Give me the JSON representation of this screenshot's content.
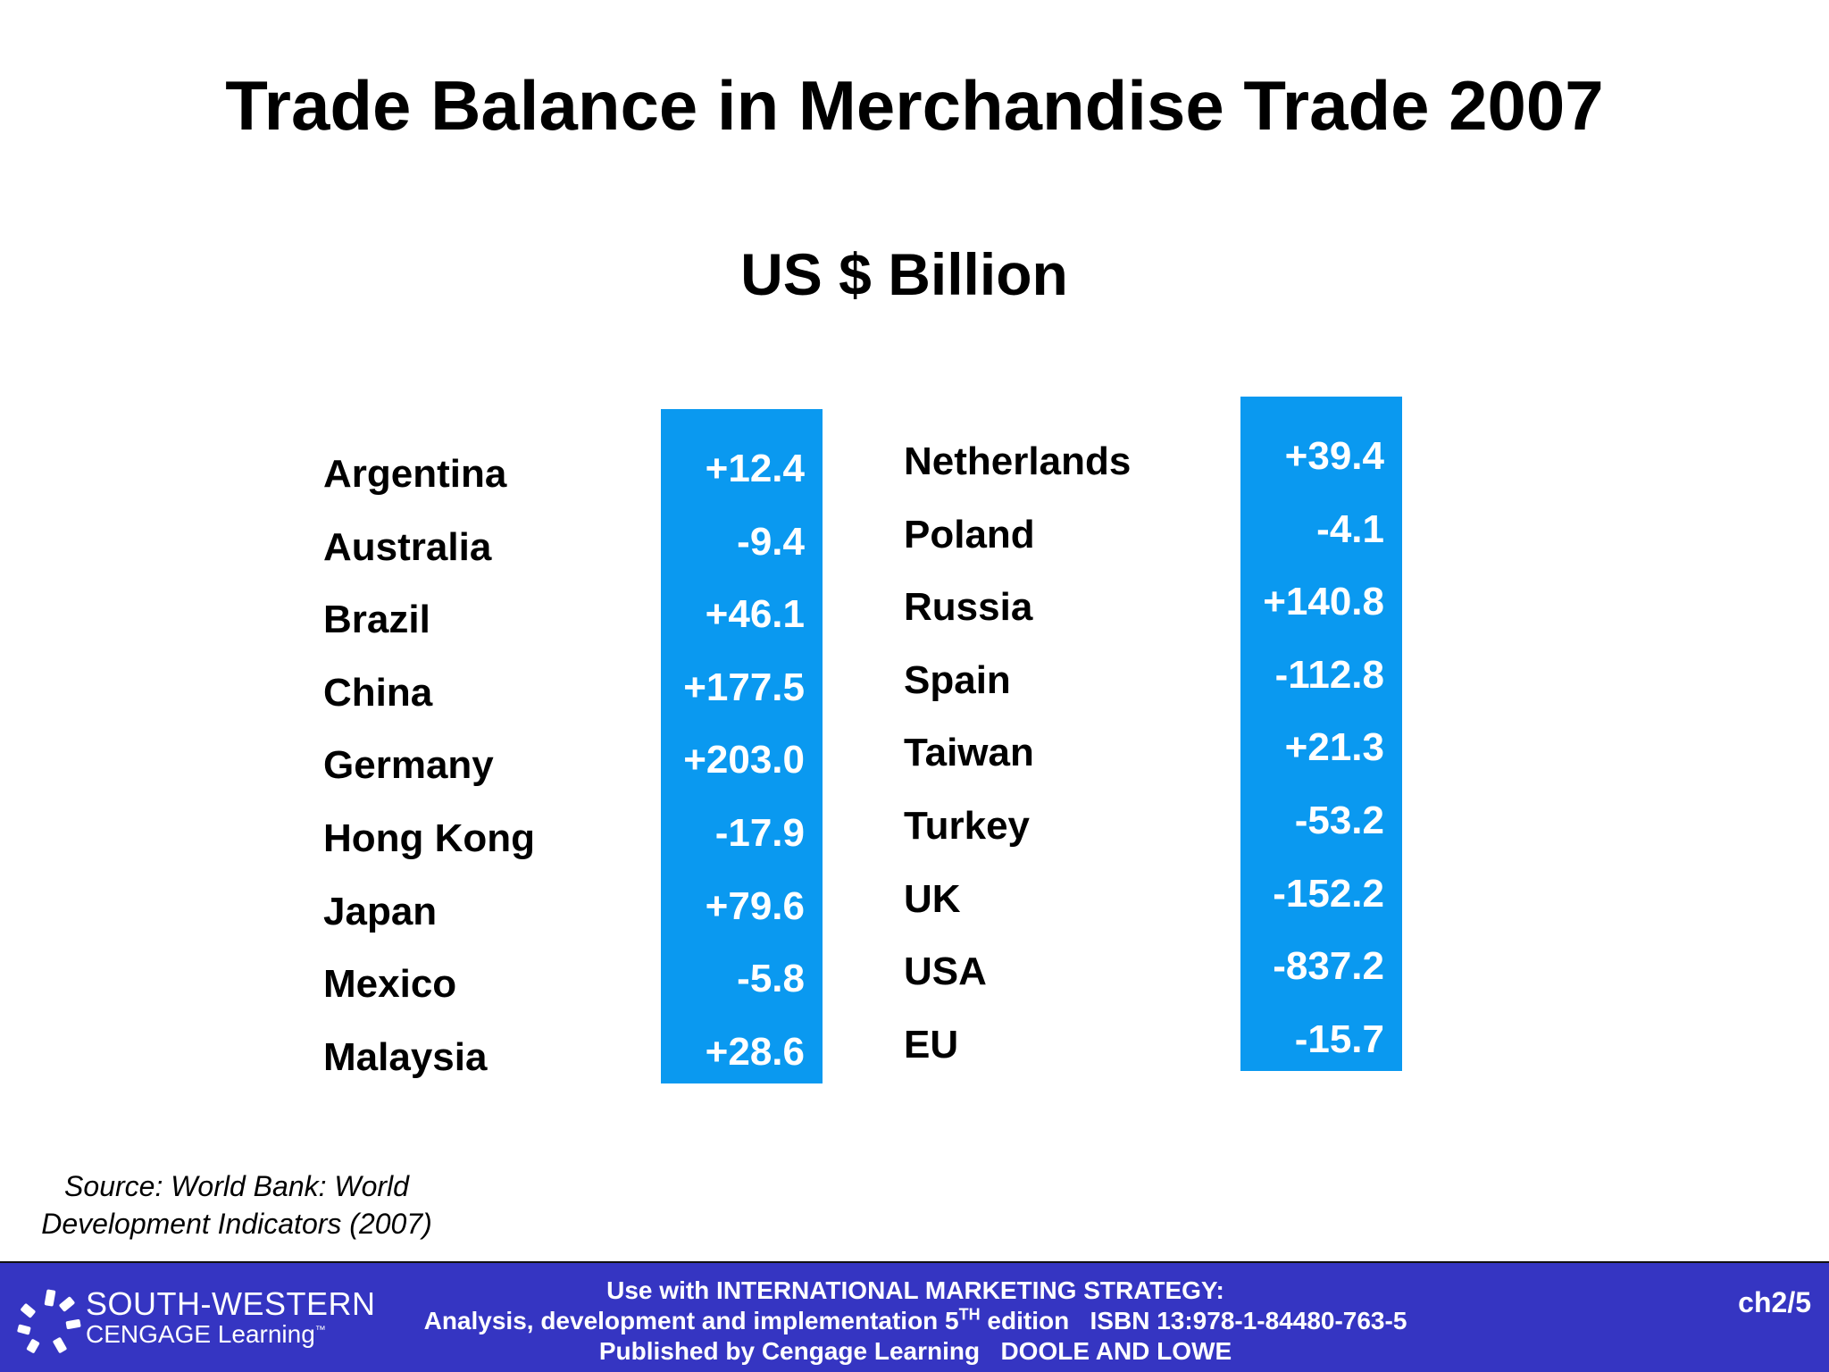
{
  "title": "Trade Balance in Merchandise Trade 2007",
  "subtitle": "US $ Billion",
  "colors": {
    "value_box": "#0a99f0",
    "footer_bg": "#3535c2"
  },
  "left_table": [
    {
      "country": "Argentina",
      "value": "+12.4"
    },
    {
      "country": "Australia",
      "value": "-9.4"
    },
    {
      "country": "Brazil",
      "value": "+46.1"
    },
    {
      "country": "China",
      "value": "+177.5"
    },
    {
      "country": "Germany",
      "value": "+203.0"
    },
    {
      "country": "Hong Kong",
      "value": "-17.9"
    },
    {
      "country": "Japan",
      "value": "+79.6"
    },
    {
      "country": "Mexico",
      "value": "-5.8"
    },
    {
      "country": "Malaysia",
      "value": "+28.6"
    }
  ],
  "right_table": [
    {
      "country": "Netherlands",
      "value": "+39.4"
    },
    {
      "country": "Poland",
      "value": "-4.1"
    },
    {
      "country": "Russia",
      "value": "+140.8"
    },
    {
      "country": "Spain",
      "value": "-112.8"
    },
    {
      "country": "Taiwan",
      "value": "+21.3"
    },
    {
      "country": "Turkey",
      "value": "-53.2"
    },
    {
      "country": "UK",
      "value": "-152.2"
    },
    {
      "country": "USA",
      "value": "-837.2"
    },
    {
      "country": "EU",
      "value": "-15.7"
    }
  ],
  "source": {
    "line1": "Source: World Bank: World",
    "line2": "Development Indicators (2007)"
  },
  "footer": {
    "logo_line1": "SOUTH-WESTERN",
    "logo_line2": "CENGAGE Learning",
    "logo_tm": "™",
    "line1": "Use with INTERNATIONAL MARKETING STRATEGY:",
    "line2_pre": "Analysis, development and implementation 5",
    "line2_sup": "TH",
    "line2_post": " edition   ISBN 13:978-1-84480-763-5",
    "line3": "Published by Cengage Learning   DOOLE AND LOWE",
    "slide_number": "ch2/5"
  }
}
